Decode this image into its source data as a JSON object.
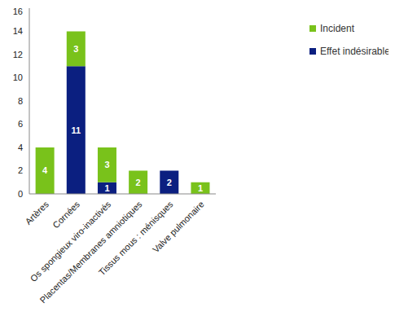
{
  "chart_data": {
    "type": "bar",
    "stacked": true,
    "data_labels": true,
    "grid": false,
    "legend": "right",
    "categories": [
      "Artères",
      "Cornées",
      "Os spongieux viro-inactivés",
      "Placentas/Membranes amniotiques",
      "Tissus mous : ménisques",
      "Valve pulmonaire"
    ],
    "series": [
      {
        "name": "Effet indésirable",
        "color": "#0b1f80",
        "values": [
          0,
          11,
          1,
          0,
          2,
          0
        ]
      },
      {
        "name": "Incident",
        "color": "#79c21b",
        "values": [
          4,
          3,
          3,
          2,
          0,
          1
        ]
      }
    ],
    "ylim": [
      0,
      16
    ],
    "yticks": [
      0,
      2,
      4,
      6,
      8,
      10,
      12,
      14,
      16
    ]
  }
}
